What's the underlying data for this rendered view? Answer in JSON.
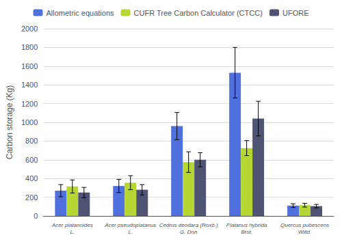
{
  "chart_data": {
    "type": "bar",
    "categories": [
      "Acer platanoides\nL.",
      "Acer pseudoplatanus\nL.",
      "Cedrus deodara (Roxb.)\nG. Don",
      "Platanus hybrida\nBrot.",
      "Quercus pubescens\nWilld."
    ],
    "series": [
      {
        "name": "Allometric equations",
        "values": [
          270,
          320,
          960,
          1530,
          110
        ],
        "errors": [
          65,
          70,
          145,
          270,
          20
        ]
      },
      {
        "name": "CUFR Tree Carbon Calculator (CTCC)",
        "values": [
          315,
          355,
          575,
          725,
          115
        ],
        "errors": [
          70,
          75,
          110,
          80,
          20
        ]
      },
      {
        "name": "UFORE",
        "values": [
          250,
          280,
          600,
          1040,
          105
        ],
        "errors": [
          55,
          55,
          75,
          185,
          18
        ]
      }
    ],
    "ylabel": "Carbon storage (Kg)",
    "ylim": [
      0,
      2000
    ],
    "yticks": [
      0,
      200,
      400,
      600,
      800,
      1000,
      1200,
      1400,
      1600,
      1800,
      2000
    ],
    "grid": true,
    "legend": "top"
  }
}
